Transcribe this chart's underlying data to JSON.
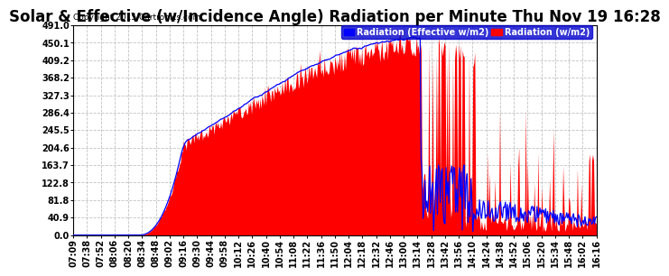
{
  "title": "Solar & Effective (w/Incidence Angle) Radiation per Minute Thu Nov 19 16:28",
  "copyright": "Copyright 2015 Cartronics.com",
  "legend_blue": "Radiation (Effective w/m2)",
  "legend_red": "Radiation (w/m2)",
  "yticks": [
    0.0,
    40.9,
    81.8,
    122.8,
    163.7,
    204.6,
    245.5,
    286.4,
    327.3,
    368.2,
    409.2,
    450.1,
    491.0
  ],
  "ymax": 491.0,
  "ymin": 0.0,
  "bg_color": "#ffffff",
  "grid_color": "#bbbbbb",
  "bar_color": "#ff0000",
  "line_color": "#0000ff",
  "title_fontsize": 12,
  "tick_fontsize": 7,
  "time_labels": [
    "07:09",
    "07:38",
    "07:52",
    "08:06",
    "08:20",
    "08:34",
    "08:48",
    "09:02",
    "09:16",
    "09:30",
    "09:44",
    "09:58",
    "10:12",
    "10:26",
    "10:40",
    "10:54",
    "11:08",
    "11:22",
    "11:36",
    "11:50",
    "12:04",
    "12:18",
    "12:32",
    "12:46",
    "13:00",
    "13:14",
    "13:28",
    "13:42",
    "13:56",
    "14:10",
    "14:24",
    "14:38",
    "14:52",
    "15:06",
    "15:20",
    "15:34",
    "15:48",
    "16:02",
    "16:16"
  ]
}
